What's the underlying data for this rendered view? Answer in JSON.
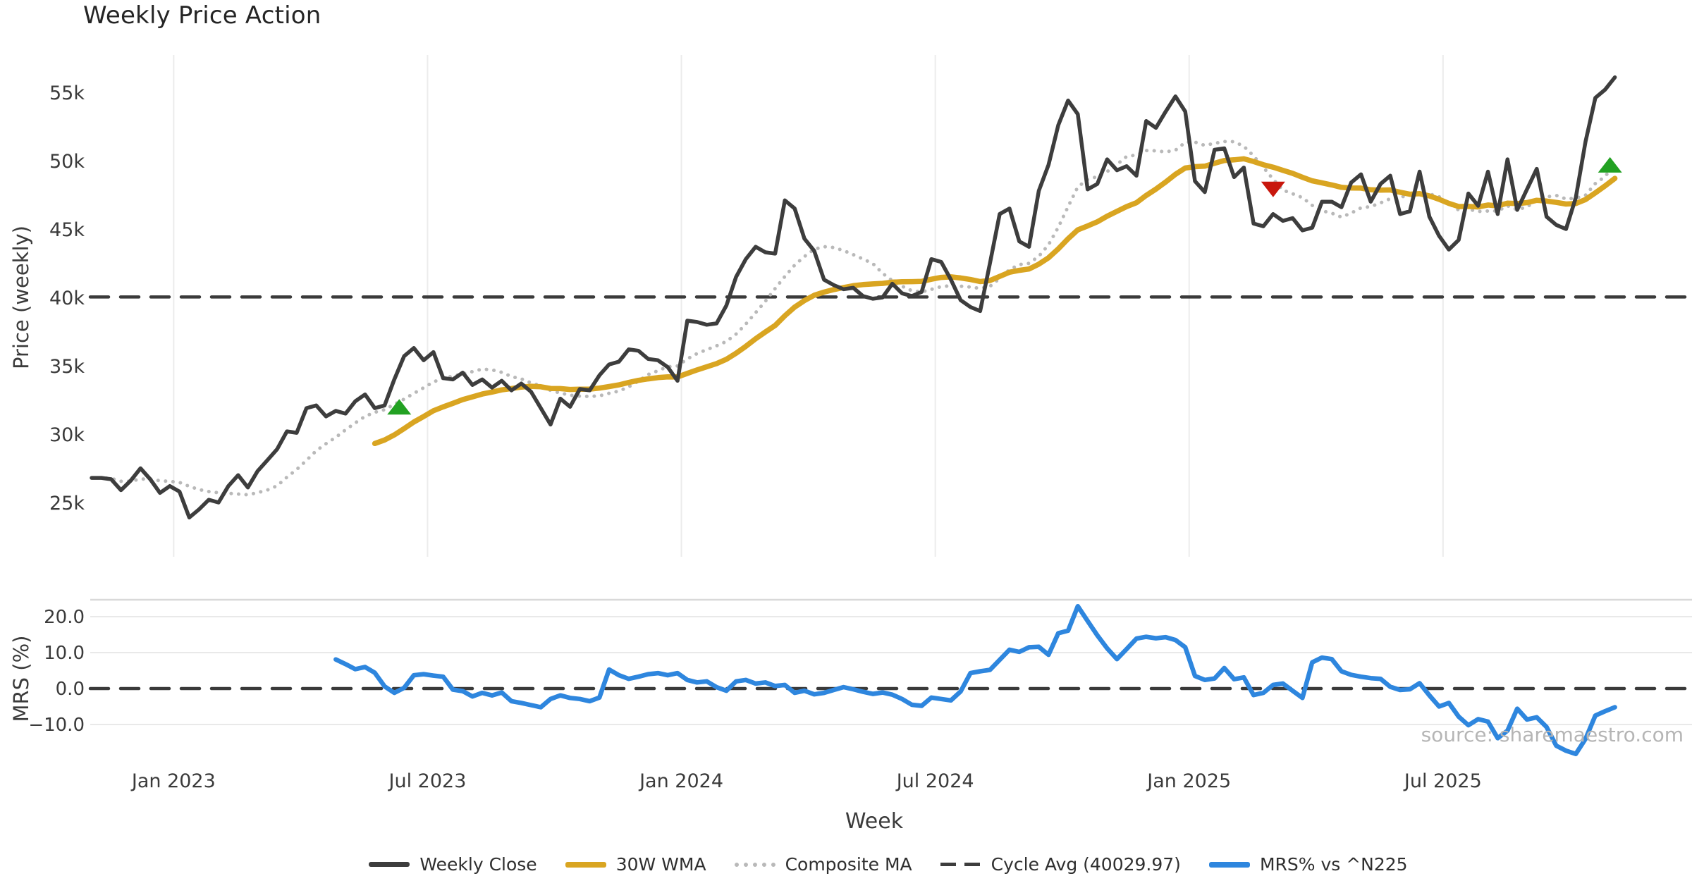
{
  "title": "Weekly Price Action",
  "watermark": "source: sharemaestro.com",
  "price_chart": {
    "ylabel": "Price (weekly)"
  },
  "mrs_chart": {
    "ylabel": "MRS (%)"
  },
  "xaxis": {
    "label": "Week",
    "ticks": [
      "Jan 2023",
      "Jul 2023",
      "Jan 2024",
      "Jul 2024",
      "Jan 2025",
      "Jul 2025"
    ]
  },
  "legend": {
    "items": [
      {
        "label": "Weekly Close",
        "swatch": "solid-close",
        "color": "#3d3d3d"
      },
      {
        "label": "30W WMA",
        "swatch": "solid-wma",
        "color": "#d9a521"
      },
      {
        "label": "Composite MA",
        "swatch": "dotted",
        "color": "#b9b9b9"
      },
      {
        "label": "Cycle Avg (40029.97)",
        "swatch": "dashed",
        "color": "#3d3d3d"
      },
      {
        "label": "MRS% vs ^N225",
        "swatch": "solid-mrs",
        "color": "#2e86de"
      }
    ]
  },
  "colors": {
    "close": "#3d3d3d",
    "wma": "#d9a521",
    "composite": "#b9b9b9",
    "cycle_dash": "#3a3a3a",
    "mrs": "#2e86de",
    "buy_marker": "#22a122",
    "sell_marker": "#c8170d",
    "gridline": "#ececec",
    "sub_gridline": "#e9e9e9",
    "sub_top_border": "#d9d9d9",
    "tick_text": "#3b3b3b"
  },
  "chart_data": [
    {
      "type": "line",
      "title": "Weekly Price Action",
      "xlabel": "Week",
      "ylabel": "Price (weekly)",
      "x_start_date": "2022-11-06",
      "x_freq_days": 7,
      "x_tick_labels": [
        "Jan 2023",
        "Jul 2023",
        "Jan 2024",
        "Jul 2024",
        "Jan 2025",
        "Jul 2025"
      ],
      "x_tick_week_index": [
        8.4,
        34.4,
        60.4,
        86.4,
        112.4,
        138.4
      ],
      "ytick_values": [
        55000,
        50000,
        45000,
        40000,
        35000,
        30000,
        25000
      ],
      "ytick_labels": [
        "55k",
        "50k",
        "45k",
        "40k",
        "35k",
        "30k",
        "25k"
      ],
      "ylim": [
        22500,
        57800
      ],
      "grid": "vertical-only",
      "legend_position": "bottom-center",
      "series": [
        {
          "name": "Weekly Close",
          "style": "solid",
          "values_thousands": [
            26.8,
            26.8,
            26.7,
            25.9,
            26.6,
            27.5,
            26.7,
            25.7,
            26.2,
            25.8,
            23.9,
            24.5,
            25.2,
            25.0,
            26.2,
            27.0,
            26.1,
            27.3,
            28.1,
            28.9,
            30.2,
            30.1,
            31.9,
            32.1,
            31.3,
            31.7,
            31.5,
            32.4,
            32.9,
            31.9,
            32.1,
            34.0,
            35.7,
            36.3,
            35.4,
            36.0,
            34.1,
            34.0,
            34.5,
            33.6,
            34.0,
            33.4,
            33.9,
            33.2,
            33.7,
            33.1,
            31.9,
            30.7,
            32.6,
            32.0,
            33.3,
            33.2,
            34.3,
            35.1,
            35.3,
            36.2,
            36.1,
            35.5,
            35.4,
            34.9,
            33.9,
            38.3,
            38.2,
            38.0,
            38.1,
            39.4,
            41.5,
            42.8,
            43.7,
            43.3,
            43.2,
            47.1,
            46.5,
            44.3,
            43.4,
            41.3,
            40.9,
            40.6,
            40.7,
            40.1,
            39.9,
            40.0,
            41.0,
            40.3,
            40.1,
            40.4,
            42.8,
            42.6,
            41.3,
            39.8,
            39.3,
            39.0,
            42.5,
            46.1,
            46.5,
            44.1,
            43.7,
            47.8,
            49.7,
            52.6,
            54.4,
            53.4,
            47.9,
            48.3,
            50.1,
            49.3,
            49.6,
            48.9,
            52.9,
            52.4,
            53.6,
            54.7,
            53.6,
            48.5,
            47.7,
            50.8,
            50.9,
            48.8,
            49.5,
            45.4,
            45.2,
            46.1,
            45.6,
            45.8,
            44.9,
            45.1,
            47.0,
            47.0,
            46.6,
            48.4,
            49.0,
            47.0,
            48.3,
            48.9,
            46.1,
            46.3,
            49.2,
            45.9,
            44.5,
            43.5,
            44.2,
            47.6,
            46.7,
            49.2,
            46.1,
            50.1,
            46.4,
            47.9,
            49.4,
            45.9,
            45.3,
            45.0,
            47.3,
            51.4,
            54.6,
            55.2,
            56.1
          ]
        },
        {
          "name": "30W WMA",
          "style": "solid",
          "derived": "linear-weighted MA, 30 weeks, of Weekly Close (starts week 30)"
        },
        {
          "name": "Composite MA",
          "style": "dotted",
          "derived": "10-week trailing MA of Weekly Close"
        },
        {
          "name": "Cycle Avg (40029.97)",
          "style": "dashed",
          "constant_value": 40029.97
        }
      ],
      "markers": [
        {
          "shape": "triangle-up",
          "meaning": "buy-signal",
          "week_index": 31.5,
          "price_thousands": 32.0
        },
        {
          "shape": "triangle-down",
          "meaning": "sell-signal",
          "week_index": 121,
          "price_thousands": 47.9
        },
        {
          "shape": "triangle-up",
          "meaning": "buy-signal",
          "week_index": 155.5,
          "price_thousands": 49.7
        }
      ]
    },
    {
      "type": "line",
      "ylabel": "MRS (%)",
      "x_shared_with": "price chart above",
      "ytick_values": [
        20,
        10,
        0,
        -10
      ],
      "ytick_labels": [
        "20.0",
        "10.0",
        "0.0",
        "−10.0"
      ],
      "ylim": [
        -21,
        25
      ],
      "zero_line": "dashed",
      "series": [
        {
          "name": "MRS% vs ^N225",
          "style": "solid",
          "start_week_index": 25,
          "values": [
            8.1,
            6.8,
            5.4,
            6.0,
            4.4,
            0.6,
            -1.2,
            0.2,
            3.7,
            4.0,
            3.6,
            3.3,
            -0.3,
            -0.7,
            -2.2,
            -1.2,
            -1.9,
            -1.1,
            -3.5,
            -4.0,
            -4.6,
            -5.2,
            -2.9,
            -1.9,
            -2.6,
            -2.9,
            -3.5,
            -2.5,
            5.3,
            3.7,
            2.7,
            3.3,
            4.0,
            4.3,
            3.7,
            4.3,
            2.4,
            1.7,
            2.0,
            0.4,
            -0.6,
            2.0,
            2.4,
            1.4,
            1.7,
            0.7,
            1.0,
            -1.2,
            -0.6,
            -1.6,
            -1.2,
            -0.4,
            0.4,
            -0.2,
            -0.9,
            -1.5,
            -1.1,
            -1.7,
            -2.9,
            -4.5,
            -4.8,
            -2.5,
            -2.9,
            -3.3,
            -0.8,
            4.3,
            4.8,
            5.2,
            8.0,
            10.8,
            10.2,
            11.5,
            11.6,
            9.4,
            15.4,
            16.1,
            22.9,
            18.8,
            14.8,
            11.2,
            8.2,
            11.0,
            13.9,
            14.4,
            14.0,
            14.3,
            13.5,
            11.5,
            3.5,
            2.4,
            2.8,
            5.7,
            2.6,
            3.1,
            -1.8,
            -1.2,
            1.0,
            1.4,
            -0.6,
            -2.6,
            7.3,
            8.6,
            8.2,
            4.8,
            3.8,
            3.3,
            2.9,
            2.7,
            0.5,
            -0.4,
            -0.2,
            1.5,
            -1.9,
            -5.0,
            -4.0,
            -7.8,
            -10.2,
            -8.5,
            -9.2,
            -13.8,
            -11.7,
            -5.6,
            -8.6,
            -8.0,
            -10.7,
            -15.9,
            -17.3,
            -18.2,
            -14.0,
            -7.5,
            -6.3,
            -5.2
          ]
        }
      ]
    }
  ]
}
